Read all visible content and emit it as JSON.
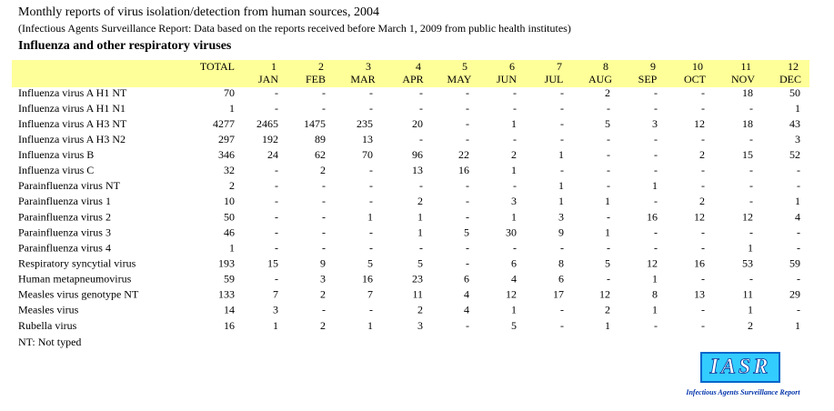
{
  "header": {
    "title": "Monthly reports of virus isolation/detection from human sources, 2004",
    "subtitle": "(Infectious Agents Surveillance Report: Data based on the reports received before March 1, 2009 from public health institutes)",
    "section": "Influenza and other respiratory viruses"
  },
  "table": {
    "total_header": "TOTAL",
    "months": [
      {
        "number": 1,
        "name": "JAN"
      },
      {
        "number": 2,
        "name": "FEB"
      },
      {
        "number": 3,
        "name": "MAR"
      },
      {
        "number": 4,
        "name": "APR"
      },
      {
        "number": 5,
        "name": "MAY"
      },
      {
        "number": 6,
        "name": "JUN"
      },
      {
        "number": 7,
        "name": "JUL"
      },
      {
        "number": 8,
        "name": "AUG"
      },
      {
        "number": 9,
        "name": "SEP"
      },
      {
        "number": 10,
        "name": "OCT"
      },
      {
        "number": 11,
        "name": "NOV"
      },
      {
        "number": 12,
        "name": "DEC"
      }
    ],
    "rows": [
      {
        "name": "Influenza virus A H1 NT",
        "cells": [
          70,
          "-",
          "-",
          "-",
          "-",
          "-",
          "-",
          "-",
          2,
          "-",
          "-",
          18,
          50
        ]
      },
      {
        "name": "Influenza virus A H1 N1",
        "cells": [
          1,
          "-",
          "-",
          "-",
          "-",
          "-",
          "-",
          "-",
          "-",
          "-",
          "-",
          "-",
          1
        ]
      },
      {
        "name": "Influenza virus A H3 NT",
        "cells": [
          4277,
          2465,
          1475,
          235,
          20,
          "-",
          1,
          "-",
          5,
          3,
          12,
          18,
          43
        ]
      },
      {
        "name": "Influenza virus A H3 N2",
        "cells": [
          297,
          192,
          89,
          13,
          "-",
          "-",
          "-",
          "-",
          "-",
          "-",
          "-",
          "-",
          3
        ]
      },
      {
        "name": "Influenza virus B",
        "cells": [
          346,
          24,
          62,
          70,
          96,
          22,
          2,
          1,
          "-",
          "-",
          2,
          15,
          52
        ]
      },
      {
        "name": "Influenza virus C",
        "cells": [
          32,
          "-",
          2,
          "-",
          13,
          16,
          1,
          "-",
          "-",
          "-",
          "-",
          "-",
          "-"
        ]
      },
      {
        "name": "Parainfluenza virus NT",
        "cells": [
          2,
          "-",
          "-",
          "-",
          "-",
          "-",
          "-",
          1,
          "-",
          1,
          "-",
          "-",
          "-"
        ]
      },
      {
        "name": "Parainfluenza virus 1",
        "cells": [
          10,
          "-",
          "-",
          "-",
          2,
          "-",
          3,
          1,
          1,
          "-",
          2,
          "-",
          1
        ]
      },
      {
        "name": "Parainfluenza virus 2",
        "cells": [
          50,
          "-",
          "-",
          1,
          1,
          "-",
          1,
          3,
          "-",
          16,
          12,
          12,
          4
        ]
      },
      {
        "name": "Parainfluenza virus 3",
        "cells": [
          46,
          "-",
          "-",
          "-",
          1,
          5,
          30,
          9,
          1,
          "-",
          "-",
          "-",
          "-"
        ]
      },
      {
        "name": "Parainfluenza virus 4",
        "cells": [
          1,
          "-",
          "-",
          "-",
          "-",
          "-",
          "-",
          "-",
          "-",
          "-",
          "-",
          1,
          "-"
        ]
      },
      {
        "name": "Respiratory syncytial virus",
        "cells": [
          193,
          15,
          9,
          5,
          5,
          "-",
          6,
          8,
          5,
          12,
          16,
          53,
          59
        ]
      },
      {
        "name": "Human metapneumovirus",
        "cells": [
          59,
          "-",
          3,
          16,
          23,
          6,
          4,
          6,
          "-",
          1,
          "-",
          "-",
          "-"
        ]
      },
      {
        "name": "Measles virus genotype NT",
        "cells": [
          133,
          7,
          2,
          7,
          11,
          4,
          12,
          17,
          12,
          8,
          13,
          11,
          29
        ]
      },
      {
        "name": "Measles virus",
        "cells": [
          14,
          3,
          "-",
          "-",
          2,
          4,
          1,
          "-",
          2,
          1,
          "-",
          1,
          "-"
        ]
      },
      {
        "name": "Rubella virus",
        "cells": [
          16,
          1,
          2,
          1,
          3,
          "-",
          5,
          "-",
          1,
          "-",
          "-",
          2,
          1
        ]
      }
    ]
  },
  "footnote": "NT: Not typed",
  "logo": {
    "mark": "IASR",
    "caption": "Infectious Agents Surveillance Report"
  }
}
